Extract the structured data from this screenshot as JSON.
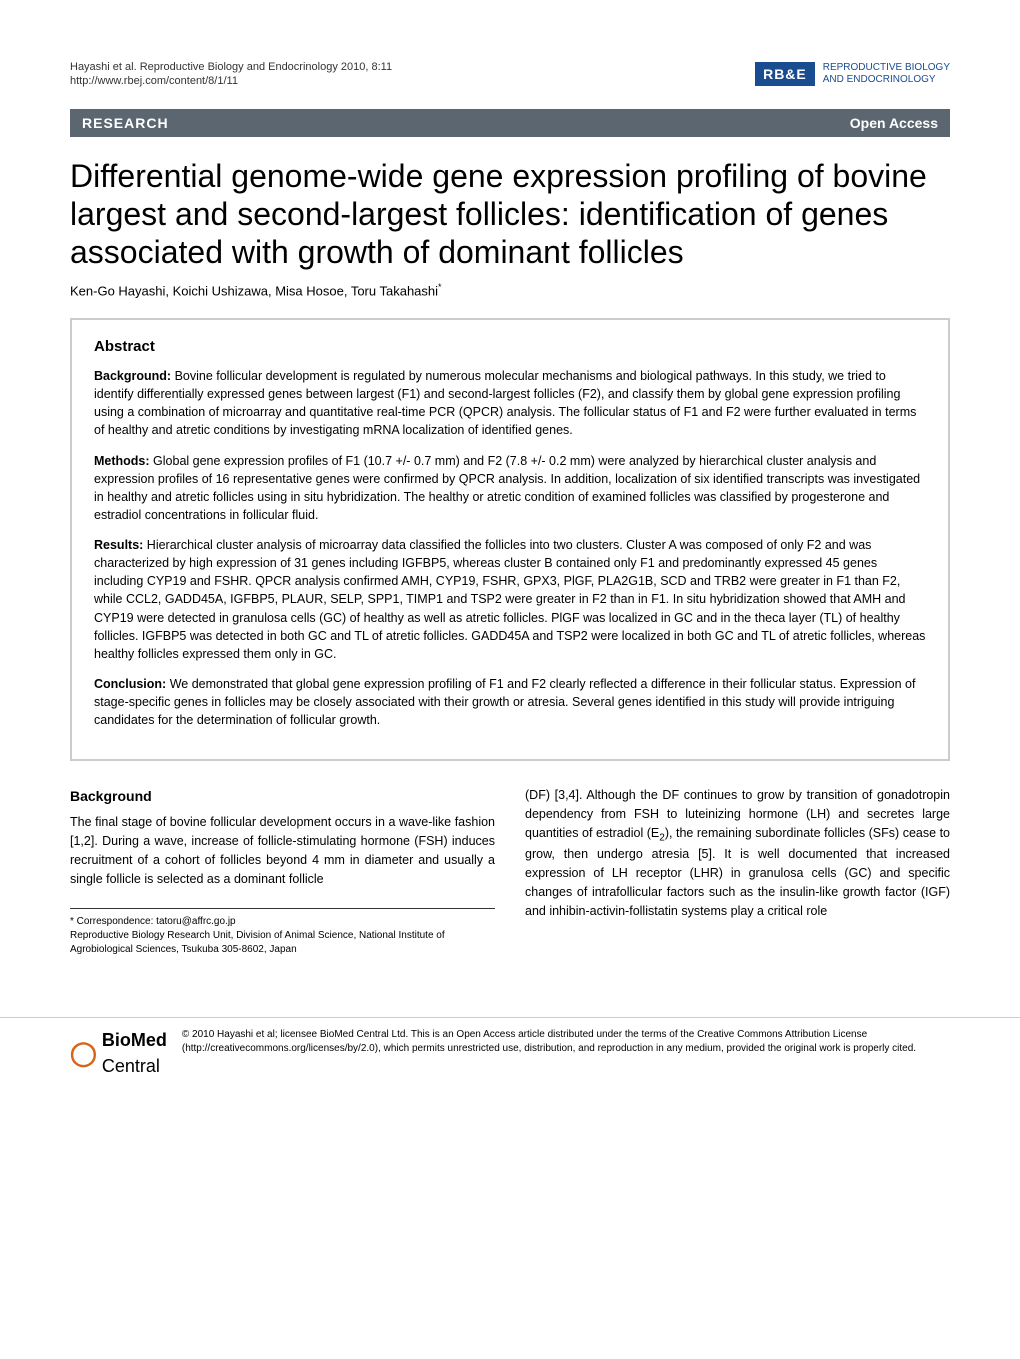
{
  "header": {
    "citation_line1": "Hayashi et al. Reproductive Biology and Endocrinology 2010, 8:11",
    "citation_line2": "http://www.rbej.com/content/8/1/11",
    "logo_text": "RB&E",
    "journal_name_1": "REPRODUCTIVE BIOLOGY",
    "journal_name_2": "AND ENDOCRINOLOGY",
    "logo_bg": "#1a4d8f",
    "logo_color": "#ffffff"
  },
  "bar": {
    "article_type": "RESEARCH",
    "access": "Open Access",
    "bg_color": "#5b6670"
  },
  "title": "Differential genome-wide gene expression profiling of bovine largest and second-largest follicles: identification of genes associated with growth of dominant follicles",
  "authors": "Ken-Go Hayashi, Koichi Ushizawa, Misa Hosoe, Toru Takahashi",
  "abstract": {
    "heading": "Abstract",
    "background_label": "Background:",
    "background_text": " Bovine follicular development is regulated by numerous molecular mechanisms and biological pathways. In this study, we tried to identify differentially expressed genes between largest (F1) and second-largest follicles (F2), and classify them by global gene expression profiling using a combination of microarray and quantitative real-time PCR (QPCR) analysis. The follicular status of F1 and F2 were further evaluated in terms of healthy and atretic conditions by investigating mRNA localization of identified genes.",
    "methods_label": "Methods:",
    "methods_text": " Global gene expression profiles of F1 (10.7 +/- 0.7 mm) and F2 (7.8 +/- 0.2 mm) were analyzed by hierarchical cluster analysis and expression profiles of 16 representative genes were confirmed by QPCR analysis. In addition, localization of six identified transcripts was investigated in healthy and atretic follicles using in situ hybridization. The healthy or atretic condition of examined follicles was classified by progesterone and estradiol concentrations in follicular fluid.",
    "results_label": "Results:",
    "results_text": " Hierarchical cluster analysis of microarray data classified the follicles into two clusters. Cluster A was composed of only F2 and was characterized by high expression of 31 genes including IGFBP5, whereas cluster B contained only F1 and predominantly expressed 45 genes including CYP19 and FSHR. QPCR analysis confirmed AMH, CYP19, FSHR, GPX3, PlGF, PLA2G1B, SCD and TRB2 were greater in F1 than F2, while CCL2, GADD45A, IGFBP5, PLAUR, SELP, SPP1, TIMP1 and TSP2 were greater in F2 than in F1. In situ hybridization showed that AMH and CYP19 were detected in granulosa cells (GC) of healthy as well as atretic follicles. PlGF was localized in GC and in the theca layer (TL) of healthy follicles. IGFBP5 was detected in both GC and TL of atretic follicles. GADD45A and TSP2 were localized in both GC and TL of atretic follicles, whereas healthy follicles expressed them only in GC.",
    "conclusion_label": "Conclusion:",
    "conclusion_text": " We demonstrated that global gene expression profiling of F1 and F2 clearly reflected a difference in their follicular status. Expression of stage-specific genes in follicles may be closely associated with their growth or atresia. Several genes identified in this study will provide intriguing candidates for the determination of follicular growth."
  },
  "body": {
    "section_heading": "Background",
    "left_col": "The final stage of bovine follicular development occurs in a wave-like fashion [1,2]. During a wave, increase of follicle-stimulating hormone (FSH) induces recruitment of a cohort of follicles beyond 4 mm in diameter and usually a single follicle is selected as a dominant follicle",
    "right_col_1": "(DF) [3,4]. Although the DF continues to grow by transition of gonadotropin dependency from FSH to luteinizing hormone (LH) and secretes large quantities of estradiol (E",
    "right_col_2": "), the remaining subordinate follicles (SFs) cease to grow, then undergo atresia [5]. It is well documented that increased expression of LH receptor (LHR) in granulosa cells (GC) and specific changes of intrafollicular factors such as the insulin-like growth factor (IGF) and inhibin-activin-follistatin systems play a critical role"
  },
  "correspondence": {
    "line1": "* Correspondence: tatoru@affrc.go.jp",
    "line2": "Reproductive Biology Research Unit, Division of Animal Science, National Institute of Agrobiological Sciences, Tsukuba 305-8602, Japan"
  },
  "footer": {
    "bmc": "BioMed",
    "bmc2": " Central",
    "license": "© 2010 Hayashi et al; licensee BioMed Central Ltd. This is an Open Access article distributed under the terms of the Creative Commons Attribution License (http://creativecommons.org/licenses/by/2.0), which permits unrestricted use, distribution, and reproduction in any medium, provided the original work is properly cited."
  },
  "colors": {
    "bar_bg": "#5b6670",
    "abstract_border": "#cccccc"
  }
}
